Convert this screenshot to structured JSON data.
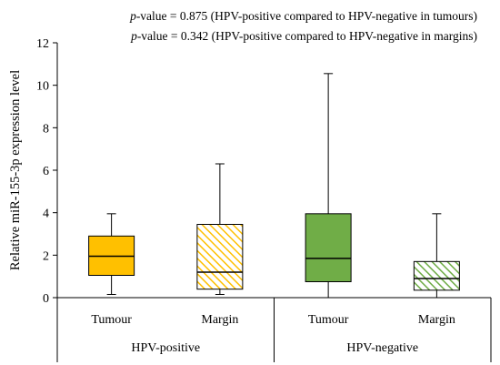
{
  "annotations": [
    {
      "p_label": "p",
      "rest": "-value = 0.875 (HPV-positive compared to HPV-negative in tumours)"
    },
    {
      "p_label": "p",
      "rest": "-value = 0.342 (HPV-positive compared to HPV-negative in margins)"
    }
  ],
  "chart_data": {
    "type": "box",
    "title": "",
    "ylabel": "Relative miR-155-3p expression level",
    "ylim": [
      0,
      12
    ],
    "yticks": [
      0,
      2,
      4,
      6,
      8,
      10,
      12
    ],
    "grid": false,
    "groups": [
      {
        "label": "HPV-positive",
        "categories": [
          "Tumour",
          "Margin"
        ]
      },
      {
        "label": "HPV-negative",
        "categories": [
          "Tumour",
          "Margin"
        ]
      }
    ],
    "boxes": [
      {
        "group": "HPV-positive",
        "category": "Tumour",
        "min": 0.15,
        "q1": 1.05,
        "median": 1.95,
        "q3": 2.9,
        "max": 3.95,
        "color": "#FFC000",
        "pattern": "solid"
      },
      {
        "group": "HPV-positive",
        "category": "Margin",
        "min": 0.15,
        "q1": 0.4,
        "median": 1.2,
        "q3": 3.45,
        "max": 6.3,
        "color": "#FFC000",
        "pattern": "hatched"
      },
      {
        "group": "HPV-negative",
        "category": "Tumour",
        "min": 0.0,
        "q1": 0.75,
        "median": 1.85,
        "q3": 3.95,
        "max": 10.55,
        "color": "#70AD47",
        "pattern": "solid"
      },
      {
        "group": "HPV-negative",
        "category": "Margin",
        "min": 0.0,
        "q1": 0.35,
        "median": 0.9,
        "q3": 1.7,
        "max": 3.95,
        "color": "#70AD47",
        "pattern": "hatched"
      }
    ]
  }
}
